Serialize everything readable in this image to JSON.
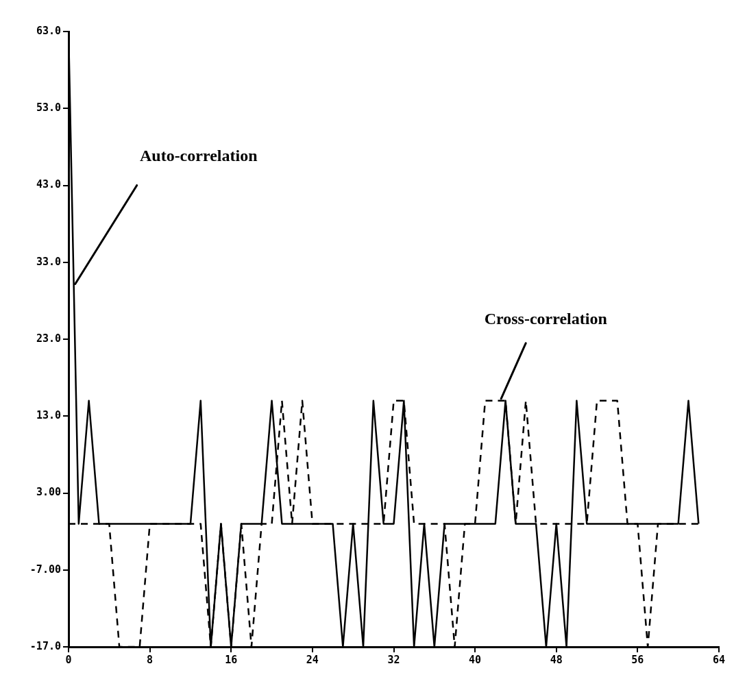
{
  "chart_data": {
    "type": "line",
    "x": [
      0,
      1,
      2,
      3,
      4,
      5,
      6,
      7,
      8,
      9,
      10,
      11,
      12,
      13,
      14,
      15,
      16,
      17,
      18,
      19,
      20,
      21,
      22,
      23,
      24,
      25,
      26,
      27,
      28,
      29,
      30,
      31,
      32,
      33,
      34,
      35,
      36,
      37,
      38,
      39,
      40,
      41,
      42,
      43,
      44,
      45,
      46,
      47,
      48,
      49,
      50,
      51,
      52,
      53,
      54,
      55,
      56,
      57,
      58,
      59,
      60,
      61,
      62
    ],
    "series": [
      {
        "color": "#000000",
        "line_style": "solid",
        "values": [
          63,
          -1,
          15,
          -1,
          -1,
          -1,
          -1,
          -1,
          -1,
          -1,
          -1,
          -1,
          -1,
          15,
          -17,
          -1,
          -17,
          -1,
          -1,
          -1,
          15,
          -1,
          -1,
          -1,
          -1,
          -1,
          -1,
          -17,
          -1,
          -17,
          15,
          -1,
          -1,
          15,
          -17,
          -1,
          -17,
          -1,
          -1,
          -1,
          -1,
          -1,
          -1,
          15,
          -1,
          -1,
          -1,
          -17,
          -1,
          -17,
          15,
          -1,
          -1,
          -1,
          -1,
          -1,
          -1,
          -1,
          -1,
          -1,
          -1,
          15,
          -1
        ]
      },
      {
        "color": "#000000",
        "line_style": "dashed",
        "values": [
          -1,
          -1,
          -1,
          -1,
          -1,
          -17,
          -17,
          -17,
          -1,
          -1,
          -1,
          -1,
          -1,
          -1,
          -17,
          -1,
          -17,
          -1,
          -17,
          -1,
          -1,
          15,
          -1,
          15,
          -1,
          -1,
          -1,
          -1,
          -1,
          -1,
          -1,
          -1,
          15,
          15,
          -1,
          -1,
          -1,
          -1,
          -17,
          -1,
          -1,
          15,
          15,
          15,
          -1,
          15,
          -1,
          -1,
          -1,
          -1,
          -1,
          -1,
          15,
          15,
          15,
          -1,
          -1,
          -17,
          -1,
          -1,
          -1,
          -1,
          -1
        ]
      }
    ],
    "xlim": [
      0,
      64
    ],
    "xticks": [
      0,
      8,
      16,
      24,
      32,
      40,
      48,
      56,
      64
    ],
    "ylim": [
      -17,
      63
    ],
    "yticks": [
      {
        "value": -17,
        "label": "-17.0"
      },
      {
        "value": -7,
        "label": "-7.00"
      },
      {
        "value": 3,
        "label": "3.00"
      },
      {
        "value": 13,
        "label": "13.0"
      },
      {
        "value": 23,
        "label": "23.0"
      },
      {
        "value": 33,
        "label": "33.0"
      },
      {
        "value": 43,
        "label": "43.0"
      },
      {
        "value": 53,
        "label": "53.0"
      },
      {
        "value": 63,
        "label": "63.0"
      }
    ],
    "annotations": [
      {
        "text": "Auto-correlation",
        "x": 0.52,
        "y": 30
      },
      {
        "text": "Cross-correlation",
        "x": 42.5,
        "y": 15
      }
    ],
    "grid": false,
    "legend": false,
    "marker": "none"
  }
}
